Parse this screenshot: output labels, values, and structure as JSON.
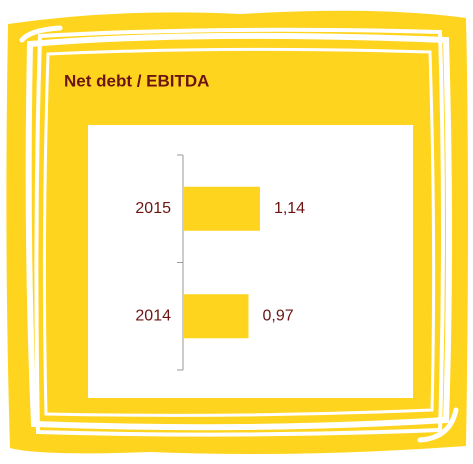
{
  "chart_data": {
    "type": "bar",
    "orientation": "horizontal",
    "title": "Net debt / EBITDA",
    "categories": [
      "2015",
      "2014"
    ],
    "values": [
      1.14,
      0.97
    ],
    "value_labels": [
      "1,14",
      "0,97"
    ],
    "color": "#ffd41f"
  }
}
